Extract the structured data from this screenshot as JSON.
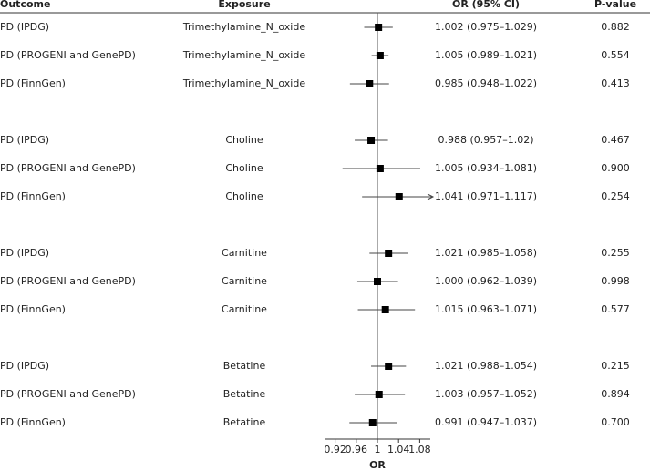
{
  "chart_data": {
    "type": "forest",
    "headers": [
      "Outcome",
      "Exposure",
      "OR (95% CI)",
      "P-value"
    ],
    "xlabel": "OR",
    "xlim": [
      0.9,
      1.1
    ],
    "xticks": [
      0.92,
      0.96,
      1,
      1.04,
      1.08
    ],
    "reference": 1,
    "color": "#000000",
    "groups": [
      [
        {
          "outcome": "PD (IPDG)",
          "exposure": "Trimethylamine_N_oxide",
          "or": 1.002,
          "lower": 0.975,
          "upper": 1.029,
          "or_label": "1.002 (0.975–1.029)",
          "p": "0.882"
        },
        {
          "outcome": "PD (PROGENI and GenePD)",
          "exposure": "Trimethylamine_N_oxide",
          "or": 1.005,
          "lower": 0.989,
          "upper": 1.021,
          "or_label": "1.005 (0.989–1.021)",
          "p": "0.554"
        },
        {
          "outcome": "PD (FinnGen)",
          "exposure": "Trimethylamine_N_oxide",
          "or": 0.985,
          "lower": 0.948,
          "upper": 1.022,
          "or_label": "0.985 (0.948–1.022)",
          "p": "0.413"
        }
      ],
      [
        {
          "outcome": "PD (IPDG)",
          "exposure": "Choline",
          "or": 0.988,
          "lower": 0.957,
          "upper": 1.02,
          "or_label": "0.988 (0.957–1.02)",
          "p": "0.467"
        },
        {
          "outcome": "PD (PROGENI and GenePD)",
          "exposure": "Choline",
          "or": 1.005,
          "lower": 0.934,
          "upper": 1.081,
          "or_label": "1.005 (0.934–1.081)",
          "p": "0.900"
        },
        {
          "outcome": "PD (FinnGen)",
          "exposure": "Choline",
          "or": 1.041,
          "lower": 0.971,
          "upper": 1.117,
          "or_label": "1.041 (0.971–1.117)",
          "p": "0.254"
        }
      ],
      [
        {
          "outcome": "PD (IPDG)",
          "exposure": "Carnitine",
          "or": 1.021,
          "lower": 0.985,
          "upper": 1.058,
          "or_label": "1.021 (0.985–1.058)",
          "p": "0.255"
        },
        {
          "outcome": "PD (PROGENI and GenePD)",
          "exposure": "Carnitine",
          "or": 1.0,
          "lower": 0.962,
          "upper": 1.039,
          "or_label": "1.000 (0.962–1.039)",
          "p": "0.998"
        },
        {
          "outcome": "PD (FinnGen)",
          "exposure": "Carnitine",
          "or": 1.015,
          "lower": 0.963,
          "upper": 1.071,
          "or_label": "1.015 (0.963–1.071)",
          "p": "0.577"
        }
      ],
      [
        {
          "outcome": "PD (IPDG)",
          "exposure": "Betatine",
          "or": 1.021,
          "lower": 0.988,
          "upper": 1.054,
          "or_label": "1.021 (0.988–1.054)",
          "p": "0.215"
        },
        {
          "outcome": "PD (PROGENI and GenePD)",
          "exposure": "Betatine",
          "or": 1.003,
          "lower": 0.957,
          "upper": 1.052,
          "or_label": "1.003 (0.957–1.052)",
          "p": "0.894"
        },
        {
          "outcome": "PD (FinnGen)",
          "exposure": "Betatine",
          "or": 0.991,
          "lower": 0.947,
          "upper": 1.037,
          "or_label": "0.991 (0.947–1.037)",
          "p": "0.700"
        }
      ]
    ]
  }
}
